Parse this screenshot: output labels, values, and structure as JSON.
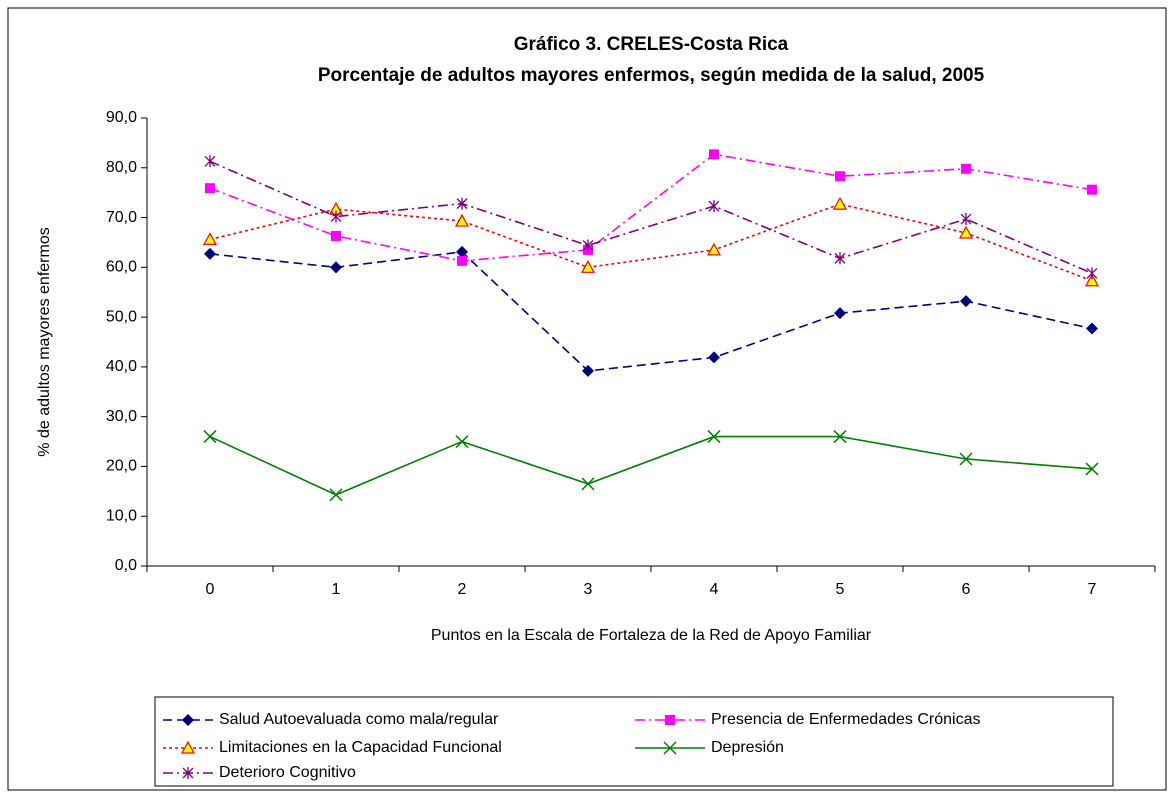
{
  "chart_data": {
    "type": "line",
    "title": [
      "Gráfico 3. CRELES-Costa Rica",
      "Porcentaje de adultos mayores enfermos, según medida de la salud, 2005"
    ],
    "x_label": "Puntos en la Escala de Fortaleza de la Red de Apoyo Familiar",
    "y_label": "% de adultos mayores enfermos",
    "categories": [
      "0",
      "1",
      "2",
      "3",
      "4",
      "5",
      "6",
      "7"
    ],
    "ylim": [
      0,
      90
    ],
    "yticks": [
      {
        "value": 0,
        "label": "0,0"
      },
      {
        "value": 10,
        "label": "10,0"
      },
      {
        "value": 20,
        "label": "20,0"
      },
      {
        "value": 30,
        "label": "30,0"
      },
      {
        "value": 40,
        "label": "40,0"
      },
      {
        "value": 50,
        "label": "50,0"
      },
      {
        "value": 60,
        "label": "60,0"
      },
      {
        "value": 70,
        "label": "70,0"
      },
      {
        "value": 80,
        "label": "80,0"
      },
      {
        "value": 90,
        "label": "90,0"
      }
    ],
    "series": [
      {
        "name": "Salud Autoevaluada como mala/regular",
        "color": "#000080",
        "marker": "diamond",
        "dash": "9,5",
        "values": [
          62.7,
          60.0,
          63.1,
          39.2,
          41.9,
          50.8,
          53.2,
          47.7
        ]
      },
      {
        "name": "Presencia de Enfermedades Crónicas",
        "color": "#ff00ff",
        "marker": "square",
        "dash": "10,4,2,4",
        "values": [
          75.9,
          66.3,
          61.3,
          63.5,
          82.7,
          78.3,
          79.8,
          75.6
        ]
      },
      {
        "name": "Limitaciones en la Capacidad Funcional",
        "color": "#ff0000",
        "marker": "triangle",
        "dash": "3,3",
        "values": [
          65.6,
          71.7,
          69.3,
          60.0,
          63.5,
          72.7,
          66.9,
          57.3
        ]
      },
      {
        "name": "Depresión",
        "color": "#008000",
        "marker": "x",
        "dash": "",
        "values": [
          26.0,
          14.3,
          25.0,
          16.5,
          26.0,
          26.0,
          21.5,
          19.5
        ]
      },
      {
        "name": "Deterioro Cognitivo",
        "color": "#800080",
        "marker": "star",
        "dash": "10,4,2,4",
        "values": [
          81.3,
          70.2,
          72.8,
          64.4,
          72.3,
          61.8,
          69.7,
          58.8
        ]
      }
    ]
  }
}
